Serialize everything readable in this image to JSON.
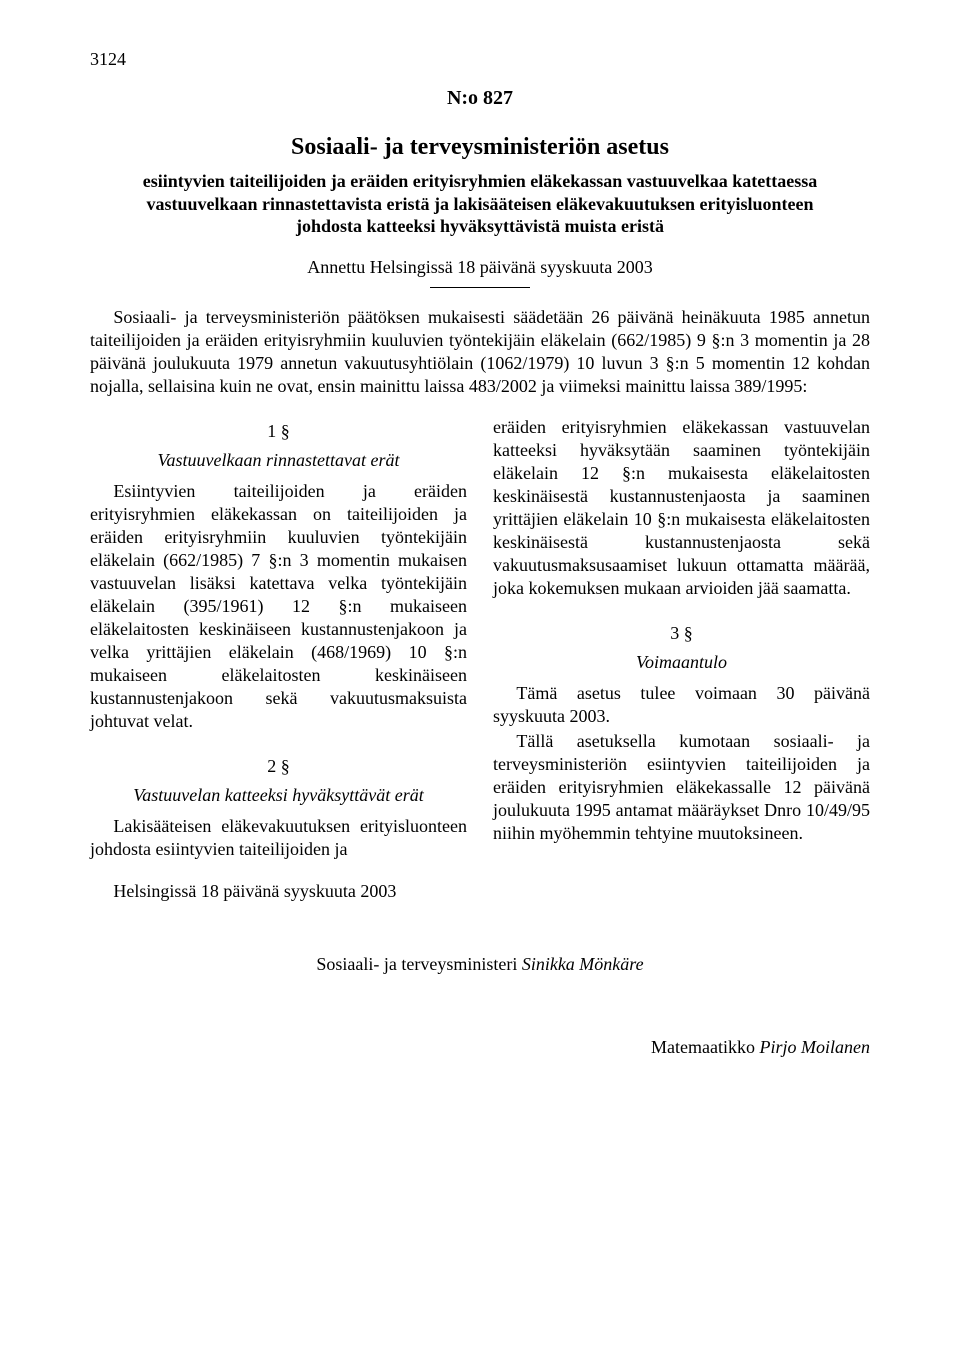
{
  "page_number": "3124",
  "doc_number": "N:o 827",
  "title": "Sosiaali- ja terveysministeriön asetus",
  "subtitle": "esiintyvien taiteilijoiden ja eräiden erityisryhmien eläkekassan vastuuvelkaa katettaessa vastuuvelkaan rinnastettavista eristä ja lakisääteisen eläkevakuutuksen erityisluonteen johdosta katteeksi hyväksyttävistä muista eristä",
  "given": "Annettu Helsingissä 18 päivänä syyskuuta 2003",
  "preamble": "Sosiaali- ja terveysministeriön päätöksen mukaisesti säädetään 26 päivänä heinäkuuta 1985 annetun taiteilijoiden ja eräiden erityisryhmiin kuuluvien työntekijäin eläkelain (662/1985) 9 §:n 3 momentin ja 28 päivänä joulukuuta 1979 annetun vakuutusyhtiölain (1062/1979) 10 luvun 3 §:n 5 momentin 12 kohdan nojalla, sellaisina kuin ne ovat, ensin mainittu laissa 483/2002 ja viimeksi mainittu laissa 389/1995:",
  "sections": {
    "s1": {
      "num": "1 §",
      "title": "Vastuuvelkaan rinnastettavat erät",
      "body": "Esiintyvien taiteilijoiden ja eräiden erityisryhmien eläkekassan on taiteilijoiden ja eräiden erityisryhmiin kuuluvien työntekijäin eläkelain (662/1985) 7 §:n 3 momentin mukaisen vastuuvelan lisäksi katettava velka työntekijäin eläkelain (395/1961) 12 §:n mukaiseen eläkelaitosten keskinäiseen kustannustenjakoon ja velka yrittäjien eläkelain (468/1969) 10 §:n mukaiseen eläkelaitosten keskinäiseen kustannustenjakoon sekä vakuutusmaksuista johtuvat velat."
    },
    "s2": {
      "num": "2 §",
      "title": "Vastuuvelan katteeksi hyväksyttävät erät",
      "body": "Lakisääteisen eläkevakuutuksen erityisluonteen johdosta esiintyvien taiteilijoiden ja",
      "body_cont": "eräiden erityisryhmien eläkekassan vastuuvelan katteeksi hyväksytään saaminen työntekijäin eläkelain 12 §:n mukaisesta eläkelaitosten keskinäisestä kustannustenjaosta ja saaminen yrittäjien eläkelain 10 §:n mukaisesta eläkelaitosten keskinäisestä kustannustenjaosta sekä vakuutusmaksusaamiset lukuun ottamatta määrää, joka kokemuksen mukaan arvioiden jää saamatta."
    },
    "s3": {
      "num": "3 §",
      "title": "Voimaantulo",
      "p1": "Tämä asetus tulee voimaan 30 päivänä syyskuuta 2003.",
      "p2": "Tällä asetuksella kumotaan sosiaali- ja terveysministeriön esiintyvien taiteilijoiden ja eräiden erityisryhmien eläkekassalle 12 päivänä joulukuuta 1995 antamat määräykset Dnro 10/49/95 niihin myöhemmin tehtyine muutoksineen."
    }
  },
  "closing_place": "Helsingissä 18 päivänä syyskuuta 2003",
  "minister_prefix": "Sosiaali- ja terveysministeri ",
  "minister_name": "Sinikka Mönkäre",
  "math_prefix": "Matemaatikko ",
  "math_name": "Pirjo Moilanen"
}
